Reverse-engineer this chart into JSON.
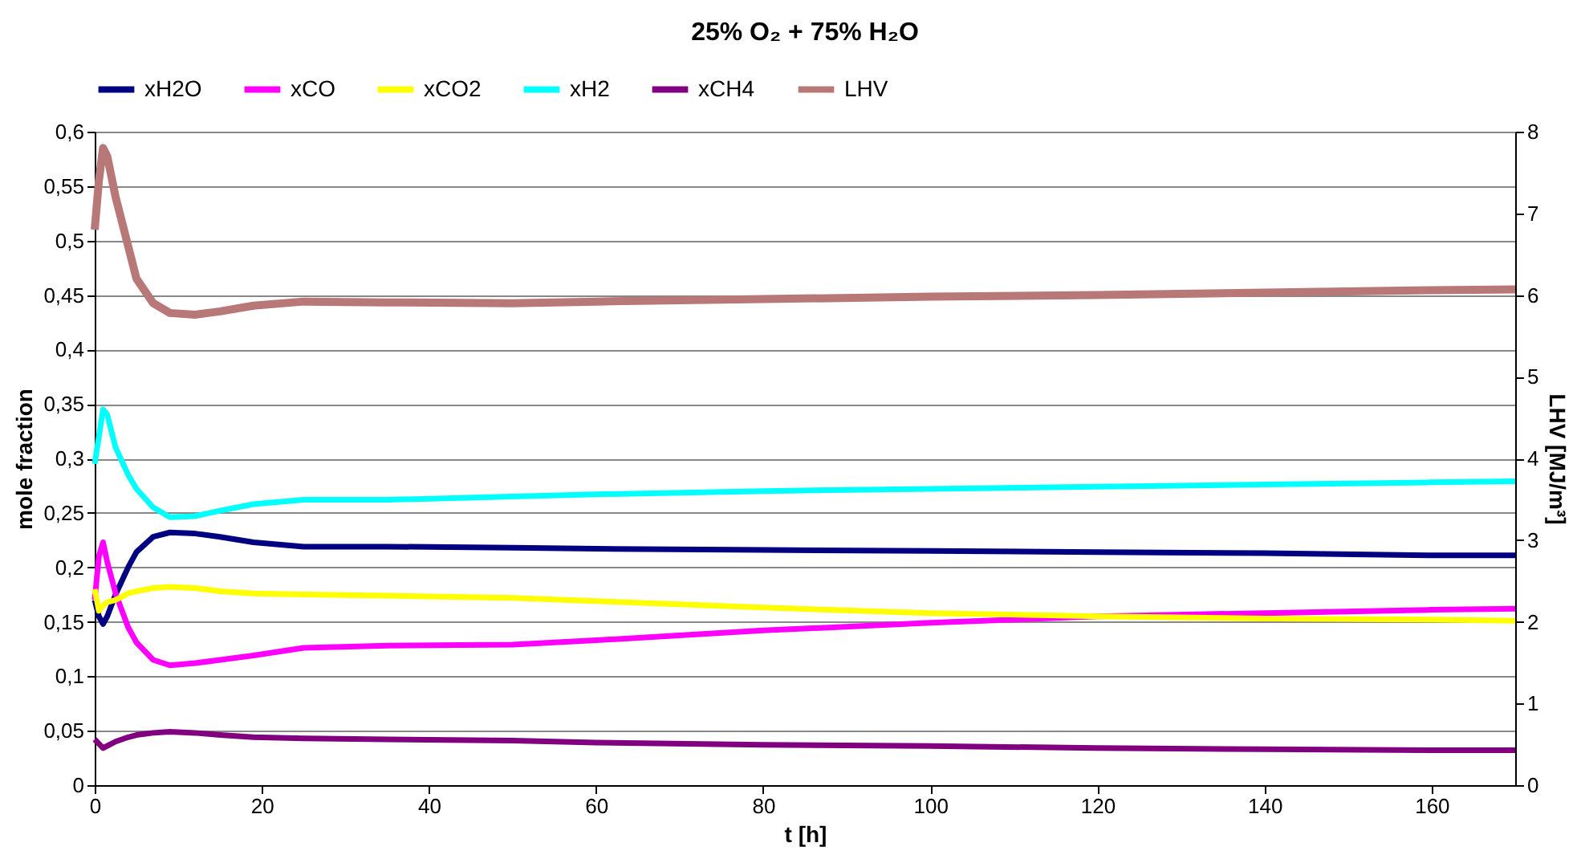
{
  "chart_data": {
    "type": "line",
    "title": "25% O₂ + 75% H₂O",
    "xlabel": "t [h]",
    "ylabel": "mole fraction",
    "y2label": "LHV [MJ/m³]",
    "x": [
      0,
      0.5,
      1,
      1.5,
      2.5,
      4,
      5,
      7,
      9,
      12,
      15,
      19,
      25,
      35,
      50,
      60,
      80,
      100,
      120,
      140,
      160,
      170
    ],
    "series": [
      {
        "name": "xH2O",
        "color": "#000080",
        "values": [
          0.17,
          0.155,
          0.148,
          0.155,
          0.175,
          0.2,
          0.214,
          0.228,
          0.232,
          0.231,
          0.228,
          0.223,
          0.219,
          0.219,
          0.218,
          0.217,
          0.216,
          0.215,
          0.214,
          0.213,
          0.211,
          0.211
        ]
      },
      {
        "name": "xCO",
        "color": "#ff00ff",
        "values": [
          0.17,
          0.21,
          0.223,
          0.205,
          0.176,
          0.145,
          0.131,
          0.115,
          0.11,
          0.112,
          0.115,
          0.119,
          0.126,
          0.128,
          0.129,
          0.133,
          0.142,
          0.149,
          0.155,
          0.158,
          0.161,
          0.162
        ]
      },
      {
        "name": "xCO2",
        "color": "#ffff00",
        "values": [
          0.18,
          0.16,
          0.165,
          0.168,
          0.17,
          0.176,
          0.178,
          0.181,
          0.182,
          0.181,
          0.178,
          0.176,
          0.175,
          0.174,
          0.172,
          0.169,
          0.163,
          0.158,
          0.155,
          0.153,
          0.152,
          0.151
        ]
      },
      {
        "name": "xH2",
        "color": "#00ffff",
        "values": [
          0.295,
          0.32,
          0.345,
          0.34,
          0.31,
          0.285,
          0.272,
          0.255,
          0.246,
          0.247,
          0.252,
          0.258,
          0.262,
          0.262,
          0.265,
          0.267,
          0.27,
          0.272,
          0.274,
          0.276,
          0.278,
          0.279
        ]
      },
      {
        "name": "xCH4",
        "color": "#800080",
        "values": [
          0.042,
          0.038,
          0.034,
          0.036,
          0.04,
          0.044,
          0.046,
          0.048,
          0.049,
          0.048,
          0.046,
          0.044,
          0.043,
          0.042,
          0.041,
          0.039,
          0.037,
          0.036,
          0.034,
          0.033,
          0.032,
          0.032
        ]
      },
      {
        "name": "LHV",
        "color": "#b87878",
        "axis": "y2",
        "values": [
          6.8,
          7.4,
          7.8,
          7.7,
          7.2,
          6.6,
          6.2,
          5.9,
          5.78,
          5.76,
          5.8,
          5.87,
          5.92,
          5.91,
          5.9,
          5.92,
          5.95,
          5.98,
          6.0,
          6.03,
          6.06,
          6.07
        ]
      }
    ],
    "xlim": [
      0,
      170
    ],
    "xticks": [
      0,
      20,
      40,
      60,
      80,
      100,
      120,
      140,
      160
    ],
    "ylim": [
      0,
      0.6
    ],
    "yticks": [
      0,
      {
        "value": 0.05,
        "label": "0,05"
      },
      {
        "value": 0.1,
        "label": "0,1"
      },
      {
        "value": 0.15,
        "label": "0,15"
      },
      {
        "value": 0.2,
        "label": "0,2"
      },
      {
        "value": 0.25,
        "label": "0,25"
      },
      {
        "value": 0.3,
        "label": "0,3"
      },
      {
        "value": 0.35,
        "label": "0,35"
      },
      {
        "value": 0.4,
        "label": "0,4"
      },
      {
        "value": 0.45,
        "label": "0,45"
      },
      {
        "value": 0.5,
        "label": "0,5"
      },
      {
        "value": 0.55,
        "label": "0,55"
      },
      {
        "value": 0.6,
        "label": "0,6"
      }
    ],
    "y2lim": [
      0,
      8
    ],
    "y2ticks": [
      0,
      1,
      2,
      3,
      4,
      5,
      6,
      7,
      8
    ],
    "grid": "y",
    "legend": "top",
    "marker": "none",
    "line_style": "solid"
  }
}
